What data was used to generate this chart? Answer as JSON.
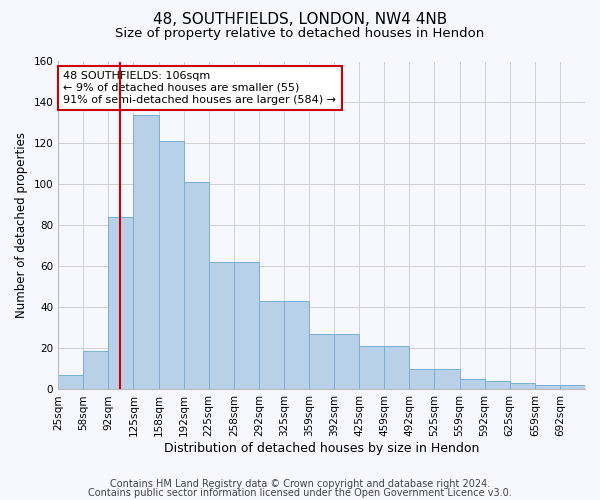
{
  "title1": "48, SOUTHFIELDS, LONDON, NW4 4NB",
  "title2": "Size of property relative to detached houses in Hendon",
  "xlabel": "Distribution of detached houses by size in Hendon",
  "ylabel": "Number of detached properties",
  "bin_labels": [
    "25sqm",
    "58sqm",
    "92sqm",
    "125sqm",
    "158sqm",
    "192sqm",
    "225sqm",
    "258sqm",
    "292sqm",
    "325sqm",
    "359sqm",
    "392sqm",
    "425sqm",
    "459sqm",
    "492sqm",
    "525sqm",
    "559sqm",
    "592sqm",
    "625sqm",
    "659sqm",
    "692sqm"
  ],
  "bar_values": [
    7,
    19,
    84,
    134,
    121,
    101,
    62,
    62,
    43,
    43,
    27,
    27,
    21,
    21,
    10,
    10,
    5,
    4,
    3,
    2,
    2
  ],
  "bar_color": "#b8d0e8",
  "bar_edge_color": "#7aaed4",
  "vline_x_index": 2.45,
  "vline_color": "#cc0000",
  "annotation_text": "48 SOUTHFIELDS: 106sqm\n← 9% of detached houses are smaller (55)\n91% of semi-detached houses are larger (584) →",
  "annotation_box_color": "#ffffff",
  "annotation_box_edge_color": "#cc0000",
  "ylim": [
    0,
    160
  ],
  "yticks": [
    0,
    20,
    40,
    60,
    80,
    100,
    120,
    140,
    160
  ],
  "footer1": "Contains HM Land Registry data © Crown copyright and database right 2024.",
  "footer2": "Contains public sector information licensed under the Open Government Licence v3.0.",
  "bg_color": "#f7f7ff",
  "grid_color": "#d0d0d0",
  "title1_fontsize": 11,
  "title2_fontsize": 9.5,
  "xlabel_fontsize": 9,
  "ylabel_fontsize": 8.5,
  "tick_fontsize": 7.5,
  "annotation_fontsize": 8,
  "footer_fontsize": 7
}
